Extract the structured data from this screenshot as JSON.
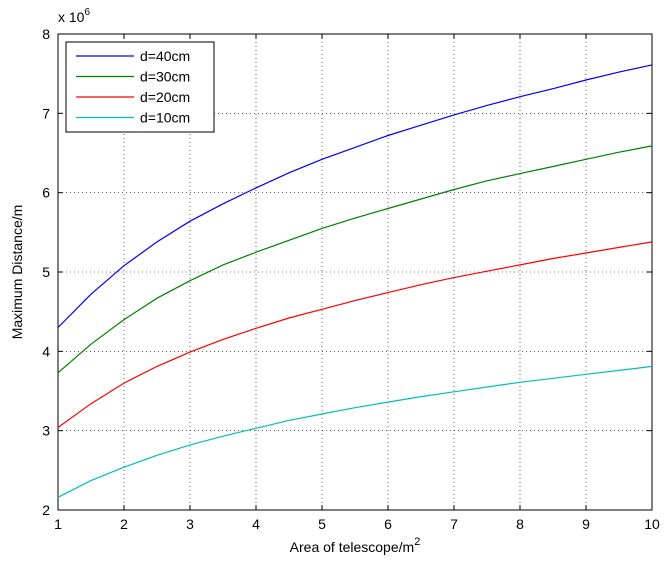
{
  "chart_data": {
    "type": "line",
    "title": "",
    "xlabel": "Area of telescope/m",
    "xlabel_superscript": "2",
    "ylabel": "Maximum Distance/m",
    "y_multiplier": "x 10",
    "y_multiplier_exp": "6",
    "xlim": [
      1,
      10
    ],
    "ylim": [
      2,
      8
    ],
    "xticks": [
      1,
      2,
      3,
      4,
      5,
      6,
      7,
      8,
      9,
      10
    ],
    "yticks": [
      2,
      3,
      4,
      5,
      6,
      7,
      8
    ],
    "grid": true,
    "legend_position": "top-left",
    "x": [
      1,
      1.5,
      2,
      2.5,
      3,
      3.5,
      4,
      4.5,
      5,
      5.5,
      6,
      6.5,
      7,
      7.5,
      8,
      8.5,
      9,
      9.5,
      10
    ],
    "series": [
      {
        "name": "d=40cm",
        "color": "#0000ff",
        "values": [
          4.3,
          4.72,
          5.08,
          5.38,
          5.64,
          5.86,
          6.06,
          6.25,
          6.42,
          6.57,
          6.72,
          6.85,
          6.98,
          7.1,
          7.21,
          7.31,
          7.42,
          7.52,
          7.61
        ]
      },
      {
        "name": "d=30cm",
        "color": "#008000",
        "values": [
          3.73,
          4.09,
          4.4,
          4.67,
          4.89,
          5.09,
          5.25,
          5.4,
          5.55,
          5.68,
          5.8,
          5.92,
          6.04,
          6.15,
          6.24,
          6.33,
          6.42,
          6.51,
          6.59
        ]
      },
      {
        "name": "d=20cm",
        "color": "#ff0000",
        "values": [
          3.04,
          3.34,
          3.6,
          3.81,
          3.99,
          4.15,
          4.29,
          4.42,
          4.53,
          4.64,
          4.74,
          4.84,
          4.93,
          5.01,
          5.09,
          5.17,
          5.24,
          5.31,
          5.38
        ]
      },
      {
        "name": "d=10cm",
        "color": "#00bfbf",
        "values": [
          2.16,
          2.37,
          2.54,
          2.69,
          2.82,
          2.93,
          3.03,
          3.13,
          3.21,
          3.29,
          3.36,
          3.43,
          3.49,
          3.55,
          3.61,
          3.66,
          3.71,
          3.76,
          3.81
        ]
      }
    ]
  }
}
